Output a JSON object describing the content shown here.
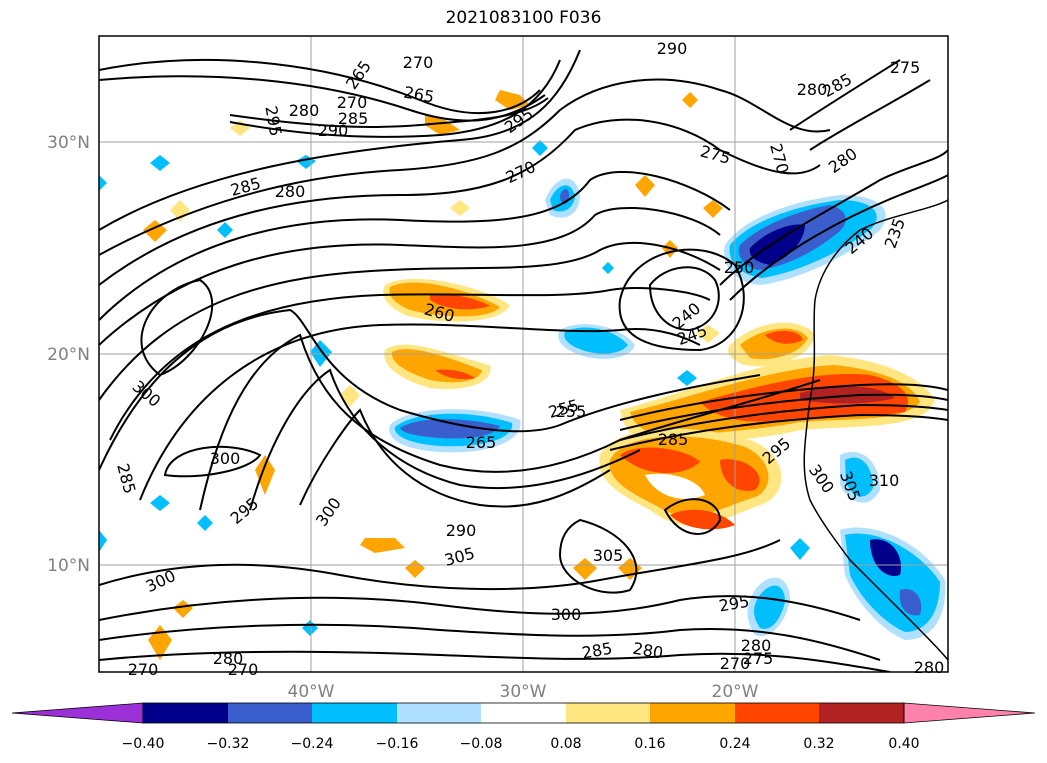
{
  "title": "2021083100 F036",
  "map": {
    "lon_ticks": [
      "40°W",
      "30°W",
      "20°W"
    ],
    "lat_ticks": [
      "30°N",
      "20°N",
      "10°N"
    ],
    "contour_labels": [
      "270",
      "265",
      "265",
      "270",
      "280",
      "285",
      "290",
      "295",
      "290",
      "295",
      "275",
      "270",
      "270",
      "280",
      "285",
      "275",
      "285",
      "280",
      "260",
      "255",
      "250",
      "240",
      "245",
      "235",
      "240",
      "300",
      "300",
      "285",
      "295",
      "300",
      "265",
      "255",
      "285",
      "295",
      "300",
      "305",
      "310",
      "290",
      "305",
      "305",
      "300",
      "300",
      "295",
      "285",
      "280",
      "280",
      "275",
      "270",
      "270",
      "280",
      "270",
      "280",
      "280"
    ]
  },
  "colorbar": {
    "ticks": [
      "−0.40",
      "−0.32",
      "−0.24",
      "−0.16",
      "−0.08",
      "0.08",
      "0.16",
      "0.24",
      "0.32",
      "0.40"
    ],
    "colors": [
      "#9b30d8",
      "#00008b",
      "#3a5fcd",
      "#00bfff",
      "#b0e0ff",
      "#ffffff",
      "#ffe680",
      "#ffa500",
      "#ff4500",
      "#b22222",
      "#ff82ab"
    ]
  }
}
